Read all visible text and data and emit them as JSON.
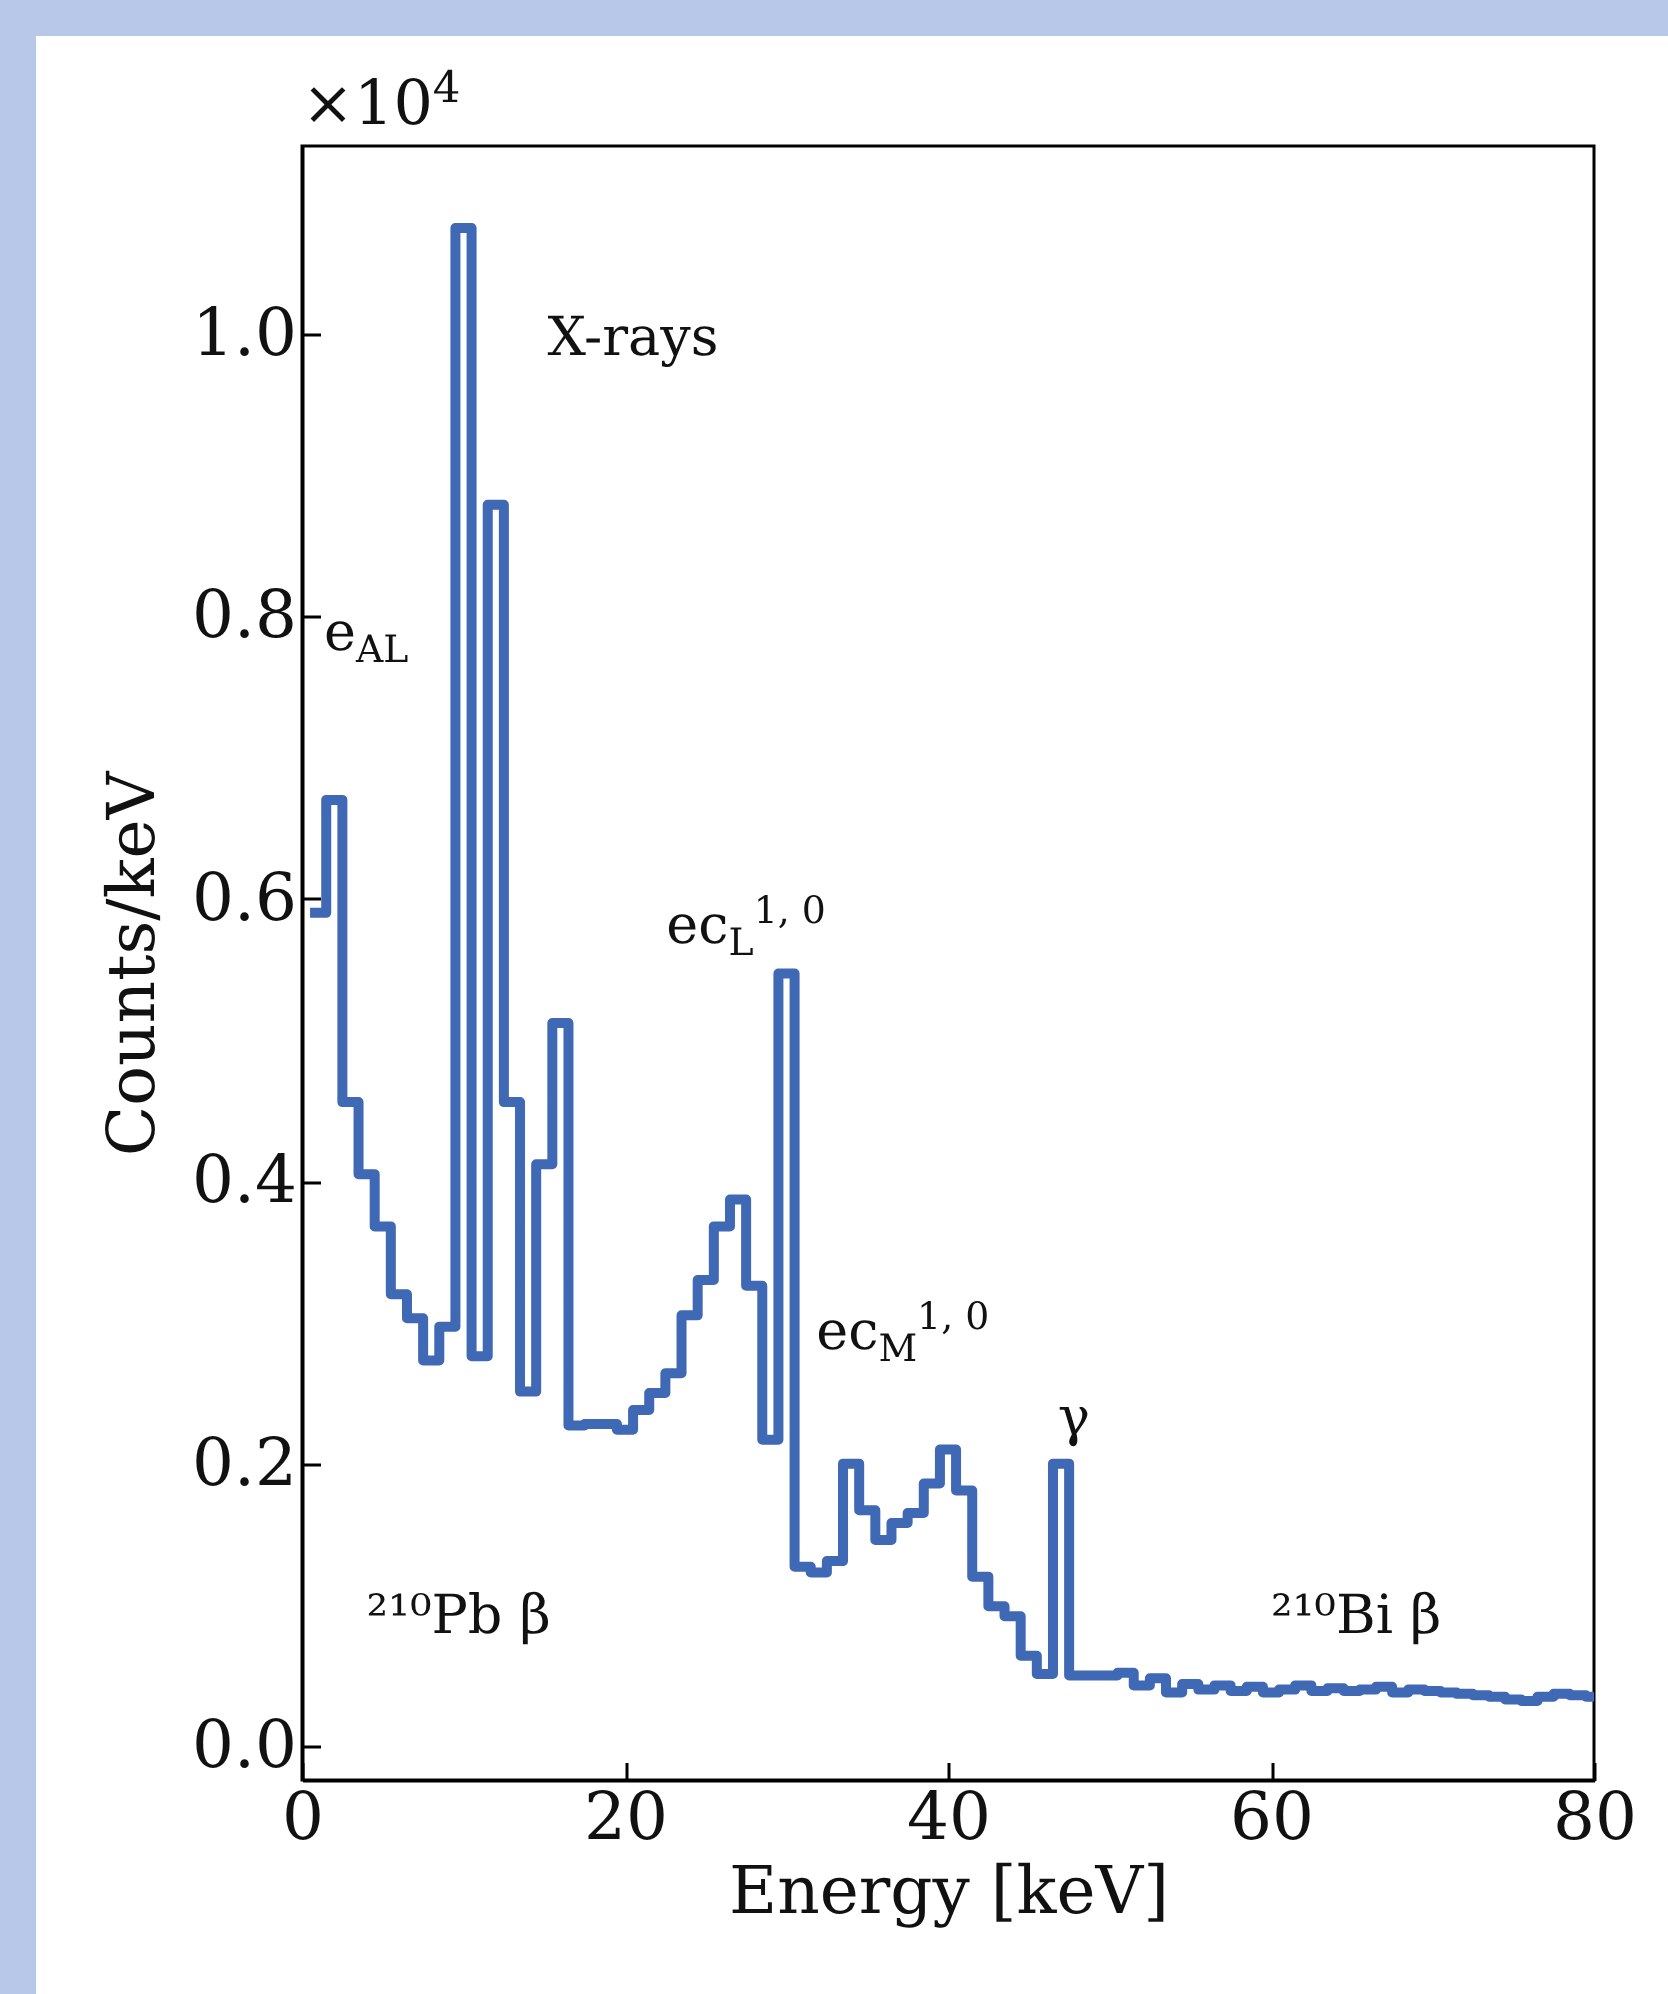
{
  "chart_data": {
    "type": "histogram",
    "xlabel": "Energy [keV]",
    "ylabel": "Counts/keV",
    "bins": [
      0.5,
      1.5,
      2.5,
      3.5,
      4.5,
      5.5,
      6.5,
      7.5,
      8.5,
      9.5,
      10.5,
      11.5,
      12.5,
      13.5,
      14.5,
      15.5,
      16.5,
      17.5,
      18.5,
      19.5,
      20.5,
      21.5,
      22.5,
      23.5,
      24.5,
      25.5,
      26.5,
      27.5,
      28.5,
      29.5,
      30.5,
      31.5,
      32.5,
      33.5,
      34.5,
      35.5,
      36.5,
      37.5,
      38.5,
      39.5,
      40.5,
      41.5,
      42.5,
      43.5,
      44.5,
      45.5,
      46.5,
      47.5,
      48.5,
      49.5,
      50.5,
      51.5,
      52.5,
      53.5,
      54.5,
      55.5,
      56.5,
      57.5,
      58.5,
      59.5,
      60.5,
      61.5,
      62.5,
      63.5,
      64.5,
      65.5,
      66.5,
      67.5,
      68.5,
      69.5,
      70.5,
      71.5,
      72.5,
      73.5,
      74.5,
      75.5,
      76.5,
      77.5,
      78.5,
      79.5,
      80
    ],
    "values": [
      0.59,
      0.67,
      0.456,
      0.405,
      0.368,
      0.32,
      0.303,
      0.273,
      0.297,
      1.075,
      0.276,
      0.879,
      0.456,
      0.251,
      0.412,
      0.512,
      0.227,
      0.228,
      0.228,
      0.224,
      0.238,
      0.25,
      0.264,
      0.305,
      0.33,
      0.368,
      0.387,
      0.326,
      0.217,
      0.547,
      0.127,
      0.123,
      0.131,
      0.2,
      0.167,
      0.146,
      0.158,
      0.165,
      0.186,
      0.21,
      0.181,
      0.12,
      0.099,
      0.092,
      0.064,
      0.051,
      0.2,
      0.05,
      0.05,
      0.05,
      0.052,
      0.043,
      0.048,
      0.038,
      0.044,
      0.04,
      0.043,
      0.039,
      0.042,
      0.038,
      0.04,
      0.043,
      0.039,
      0.041,
      0.039,
      0.04,
      0.042,
      0.038,
      0.04,
      0.039,
      0.038,
      0.037,
      0.036,
      0.035,
      0.033,
      0.032,
      0.035,
      0.037,
      0.036,
      0.035
    ],
    "color": "#3f68b5",
    "xlim": [
      0,
      80
    ],
    "xticks": [
      0,
      20,
      40,
      60,
      80
    ],
    "ylim": [
      -0.024,
      1.133
    ],
    "yticks": [
      {
        "value": 0,
        "label": "0.0"
      },
      {
        "value": 0.2,
        "label": "0.2"
      },
      {
        "value": 0.4,
        "label": "0.4"
      },
      {
        "value": 0.6,
        "label": "0.6"
      },
      {
        "value": 0.8,
        "label": "0.8"
      },
      {
        "value": 1.0,
        "label": "1.0"
      }
    ],
    "annotations": [
      "×10$^{4}$",
      "X-rays",
      "e$_{AL}$",
      "ec$_{L}$$^{1, 0}$",
      "ec$_{M}$$^{1, 0}$",
      "γ",
      "²¹⁰Pb β",
      "²¹⁰Bi β"
    ]
  }
}
